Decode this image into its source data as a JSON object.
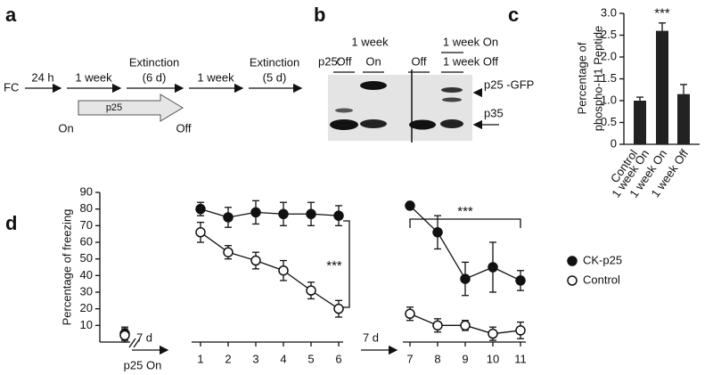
{
  "panels": {
    "a": "a",
    "b": "b",
    "c": "c",
    "d": "d"
  },
  "timeline": {
    "start": "FC",
    "steps": [
      [
        "24 h"
      ],
      [
        "1 week"
      ],
      [
        "Extinction",
        "(6 d)"
      ],
      [
        "1 week"
      ],
      [
        "Extinction",
        "(5 d)"
      ]
    ],
    "bar_label": "p25",
    "on": "On",
    "off": "Off"
  },
  "blot": {
    "group_left": "1 week",
    "group_right": [
      "1 week On",
      "1 week Off"
    ],
    "row_label": "p25:",
    "lanes": [
      "Off",
      "On",
      "Off"
    ],
    "bands": [
      "p25 -GFP",
      "p35"
    ]
  },
  "chart_data": [
    {
      "type": "bar",
      "ylabel": [
        "Percentage of",
        "phospho-H1 Peptide"
      ],
      "categories": [
        [
          "Control",
          "1 week On"
        ],
        [
          "1 week On"
        ],
        [
          "1 week Off"
        ]
      ],
      "values": [
        1.0,
        2.6,
        1.15
      ],
      "errors": [
        0.08,
        0.18,
        0.22
      ],
      "color": "#222222",
      "annotation": "***",
      "ylim": [
        0,
        3
      ],
      "yticks": [
        0,
        0.5,
        {
          "value": 1,
          "label": "1.0"
        },
        1.5,
        {
          "value": 2,
          "label": "2.0"
        },
        2.5,
        {
          "value": 3,
          "label": "3.0"
        }
      ]
    },
    {
      "type": "line",
      "ylabel": "Percentage of freezing",
      "categories": [
        null,
        "1",
        "2",
        "3",
        "4",
        "5",
        "6",
        "7",
        "8",
        "9",
        "10",
        "11"
      ],
      "series": [
        {
          "name": "CK-p25",
          "color": "#111111",
          "marker": "filled",
          "values": [
            5,
            80,
            75,
            78,
            77,
            77,
            76,
            82,
            66,
            38,
            45,
            37
          ],
          "errors": [
            4,
            4,
            6,
            7,
            7,
            7,
            6,
            2,
            10,
            10,
            15,
            6
          ]
        },
        {
          "name": "Control",
          "color": "#111111",
          "marker": "open",
          "values": [
            4,
            66,
            54,
            49,
            43,
            31,
            20,
            17,
            10,
            10,
            5,
            7
          ],
          "errors": [
            4,
            6,
            4,
            5,
            6,
            5,
            5,
            4,
            4,
            3,
            4,
            5
          ]
        }
      ],
      "annotations": {
        "gap1": "7 d",
        "start": "p25 On",
        "gap2": "7 d",
        "sig1": "***",
        "sig2": "***"
      },
      "ylim": [
        0,
        90
      ],
      "yticks": [
        10,
        20,
        30,
        40,
        50,
        60,
        70,
        80,
        90
      ],
      "legend": "right"
    }
  ]
}
